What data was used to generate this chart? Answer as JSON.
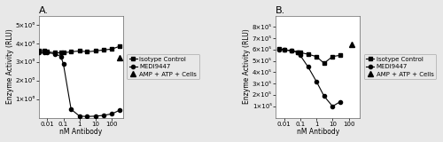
{
  "panel_A": {
    "title": "A.",
    "ylabel": "Enzyme Activity (RLU)",
    "xlabel": "nM Antibody",
    "ylim": [
      0,
      5500000.0
    ],
    "yticks": [
      1000000.0,
      2000000.0,
      3000000.0,
      4000000.0,
      5000000.0
    ],
    "ytick_labels": [
      "1×10⁶",
      "2×10⁶",
      "3×10⁶",
      "4×10⁶",
      "5×10⁶"
    ],
    "xtick_vals": [
      0.01,
      0.1,
      1,
      10,
      100
    ],
    "xtick_labels": [
      "0.01",
      "0.1",
      "1",
      "10",
      "100"
    ],
    "xlim": [
      0.003,
      500
    ],
    "medi_x": [
      0.003,
      0.007,
      0.01,
      0.03,
      0.07,
      0.1,
      0.3,
      1,
      3,
      10,
      30,
      100,
      300
    ],
    "medi_y": [
      3500000.0,
      3500000.0,
      3500000.0,
      3450000.0,
      3300000.0,
      2900000.0,
      450000.0,
      80000.0,
      60000.0,
      80000.0,
      120000.0,
      200000.0,
      400000.0
    ],
    "isotype_x": [
      0.003,
      0.007,
      0.01,
      0.03,
      0.07,
      0.1,
      0.3,
      1,
      3,
      10,
      30,
      100,
      300
    ],
    "isotype_y": [
      3600000.0,
      3600000.0,
      3550000.0,
      3500000.0,
      3500000.0,
      3500000.0,
      3550000.0,
      3600000.0,
      3550000.0,
      3600000.0,
      3650000.0,
      3700000.0,
      3850000.0
    ],
    "amp_x": [
      300
    ],
    "amp_y": [
      3250000.0
    ],
    "legend_labels": [
      "MEDI9447",
      "Isotype Control",
      "AMP + ATP + Cells"
    ]
  },
  "panel_B": {
    "title": "B.",
    "ylabel": "Enzyme Activity (RLU)",
    "xlabel": "nM Antibody",
    "ylim": [
      0,
      900000.0
    ],
    "yticks": [
      100000.0,
      200000.0,
      300000.0,
      400000.0,
      500000.0,
      600000.0,
      700000.0,
      800000.0
    ],
    "ytick_labels": [
      "1×10⁵",
      "2×10⁵",
      "3×10⁵",
      "4×10⁵",
      "5×10⁵",
      "6×10⁵",
      "7×10⁵",
      "8×10⁵"
    ],
    "xtick_vals": [
      0.01,
      0.1,
      1,
      10,
      100
    ],
    "xtick_labels": [
      "0.01",
      "0.1",
      "1",
      "10",
      "100"
    ],
    "xlim": [
      0.003,
      500
    ],
    "medi_x": [
      0.005,
      0.01,
      0.03,
      0.07,
      0.1,
      0.3,
      1,
      3,
      10,
      30
    ],
    "medi_y": [
      600000.0,
      600000.0,
      590000.0,
      580000.0,
      550000.0,
      450000.0,
      320000.0,
      190000.0,
      100000.0,
      140000.0
    ],
    "isotype_x": [
      0.005,
      0.01,
      0.03,
      0.07,
      0.1,
      0.3,
      1,
      3,
      10,
      30
    ],
    "isotype_y": [
      610000.0,
      600000.0,
      590000.0,
      580000.0,
      575000.0,
      560000.0,
      540000.0,
      480000.0,
      540000.0,
      550000.0
    ],
    "amp_x": [
      150
    ],
    "amp_y": [
      650000.0
    ],
    "legend_labels": [
      "MEDI9447",
      "Isotype Control",
      "AMP + ATP + Cells"
    ]
  },
  "bg_color": "#e8e8e8",
  "plot_bg": "#ffffff",
  "line_color": "#000000",
  "marker_circle": "o",
  "marker_square": "s",
  "marker_triangle": "^",
  "markersize": 3.0,
  "linewidth": 0.8,
  "legend_fontsize": 5.0,
  "tick_fontsize": 5.0,
  "label_fontsize": 5.5,
  "title_fontsize": 8,
  "legend_box_color": "#cccccc"
}
